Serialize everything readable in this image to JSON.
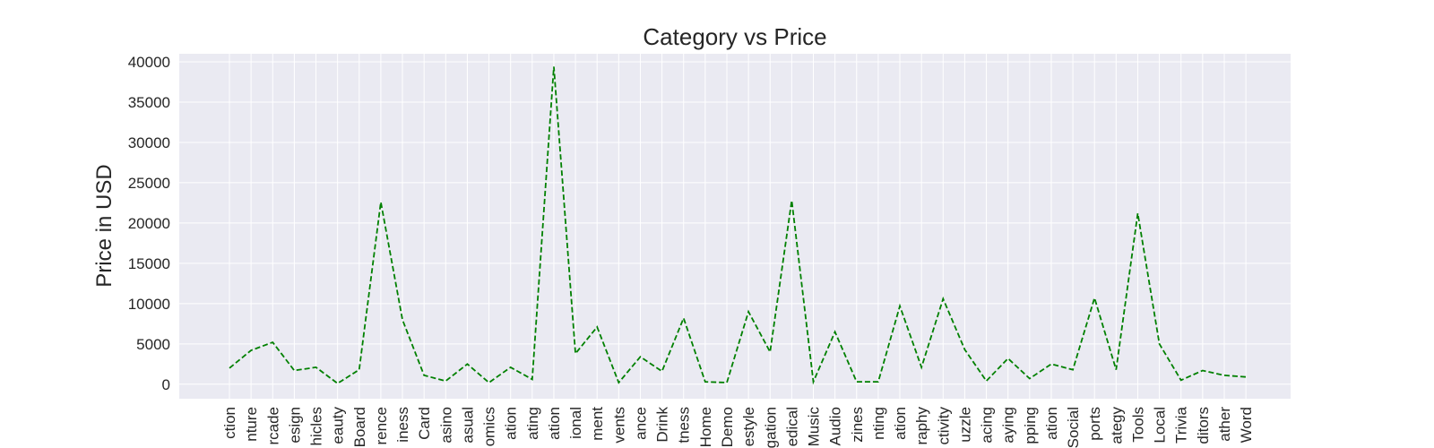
{
  "chart_data": {
    "type": "line",
    "title": "Category vs Price",
    "xlabel": "",
    "ylabel": "Price in USD",
    "ylim": [
      -1800,
      41000
    ],
    "yticks": [
      0,
      5000,
      10000,
      15000,
      20000,
      25000,
      30000,
      35000,
      40000
    ],
    "grid": true,
    "line_color": "#008000",
    "line_style": "dashed",
    "background": "#eaeaf2",
    "categories": [
      "ction",
      "nture",
      "rcade",
      "esign",
      "hicles",
      "eauty",
      "Board",
      "rence",
      "iness",
      "Card",
      "asino",
      "asual",
      "omics",
      "ation",
      "ating",
      "ation",
      "ional",
      "ment",
      "vents",
      "ance",
      "Drink",
      "tness",
      "Home",
      "Demo",
      "estyle",
      "gation",
      "edical",
      "Music",
      "Audio",
      "zines",
      "nting",
      "ation",
      "raphy",
      "ctivity",
      "uzzle",
      "acing",
      "aying",
      "pping",
      "ation",
      "Social",
      "ports",
      "ategy",
      "Tools",
      "Local",
      "Trivia",
      "ditors",
      "ather",
      "Word"
    ],
    "series": [
      {
        "values": [
          2000,
          4200,
          5200,
          1700,
          2100,
          100,
          1800,
          22600,
          8000,
          1100,
          400,
          2500,
          200,
          2100,
          600,
          39400,
          3800,
          7100,
          200,
          3400,
          1600,
          8200,
          300,
          200,
          9000,
          4000,
          22800,
          300,
          6500,
          300,
          300,
          9700,
          2100,
          10600,
          4300,
          400,
          3200,
          700,
          2500,
          1800,
          10700,
          1800,
          21200,
          5000,
          500,
          1700,
          1100,
          900
        ]
      }
    ]
  }
}
